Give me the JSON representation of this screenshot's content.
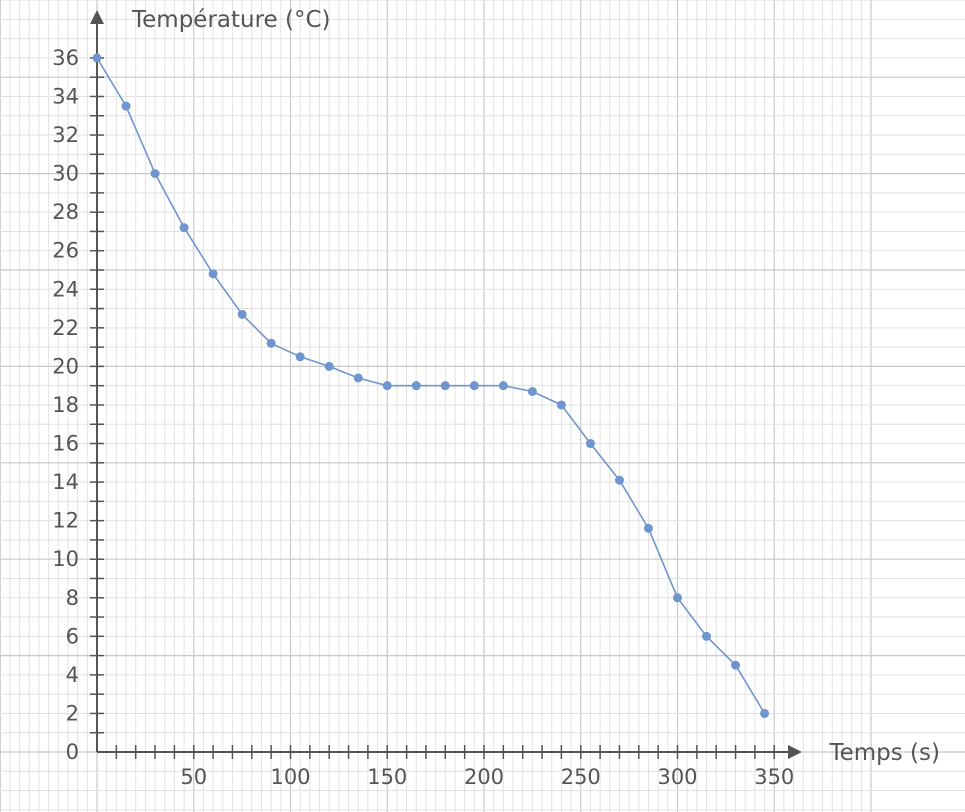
{
  "chart_data": {
    "type": "line",
    "xlabel": "Temps (s)",
    "ylabel": "Température (°C)",
    "xlim": [
      0,
      360
    ],
    "ylim": [
      0,
      37
    ],
    "x_ticks": [
      50,
      100,
      150,
      200,
      250,
      300,
      350
    ],
    "x_tick_labels": [
      "50",
      "100",
      "150",
      "200",
      "250",
      "300",
      "350"
    ],
    "y_ticks": [
      0,
      2,
      4,
      6,
      8,
      10,
      12,
      14,
      16,
      18,
      20,
      22,
      24,
      26,
      28,
      30,
      32,
      34,
      36
    ],
    "y_tick_labels": [
      "0",
      "2",
      "4",
      "6",
      "8",
      "10",
      "12",
      "14",
      "16",
      "18",
      "20",
      "22",
      "24",
      "26",
      "28",
      "30",
      "32",
      "34",
      "36"
    ],
    "grid": true,
    "series": [
      {
        "color": "#6f95cf",
        "x": [
          0,
          15,
          30,
          45,
          60,
          75,
          90,
          105,
          120,
          135,
          150,
          165,
          180,
          195,
          210,
          225,
          240,
          255,
          270,
          285,
          300,
          315,
          330,
          345
        ],
        "y": [
          36,
          33.5,
          30,
          27.2,
          24.8,
          22.7,
          21.2,
          20.5,
          20,
          19.4,
          19,
          19,
          19,
          19,
          19,
          18.7,
          18,
          16,
          14.1,
          11.6,
          8,
          6,
          4.5,
          2
        ]
      }
    ],
    "colors": {
      "grid_major": "#c8c8c8",
      "grid_minor": "#e2e2e2",
      "axis": "#555555"
    }
  }
}
